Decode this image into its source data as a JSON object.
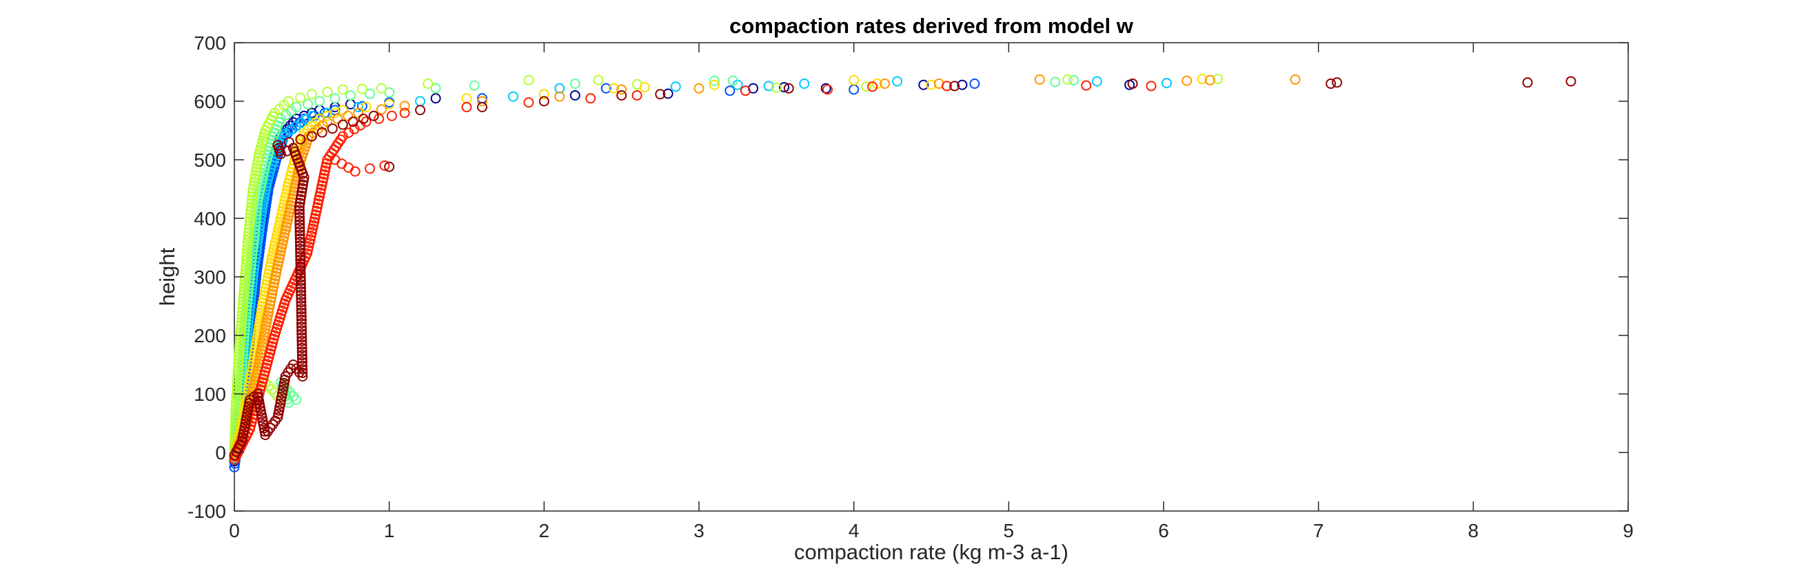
{
  "chart_data": {
    "type": "scatter",
    "title": "compaction rates derived from model w",
    "xlabel": "compaction rate (kg m-3 a-1)",
    "ylabel": "height",
    "xlim": [
      0,
      9
    ],
    "ylim": [
      -100,
      700
    ],
    "xticks": [
      "0",
      "1",
      "2",
      "3",
      "4",
      "5",
      "6",
      "7",
      "8",
      "9"
    ],
    "yticks": [
      "-100",
      "0",
      "100",
      "200",
      "300",
      "400",
      "500",
      "600",
      "700"
    ],
    "grid": false,
    "legend": "none",
    "marker": "open-circle",
    "colormap": [
      "#00007f",
      "#0000ff",
      "#007fff",
      "#00ffff",
      "#7fff7f",
      "#ffff00",
      "#ff7f00",
      "#ff0000",
      "#7f0000"
    ],
    "series": [
      {
        "color": "#00008f",
        "points": [
          [
            0.0,
            -15
          ],
          [
            0.02,
            20
          ],
          [
            0.05,
            80
          ],
          [
            0.08,
            150
          ],
          [
            0.12,
            250
          ],
          [
            0.16,
            350
          ],
          [
            0.2,
            430
          ],
          [
            0.25,
            500
          ],
          [
            0.3,
            540
          ],
          [
            0.4,
            570
          ],
          [
            0.55,
            585
          ],
          [
            0.75,
            595
          ],
          [
            1.3,
            605
          ],
          [
            2.2,
            610
          ],
          [
            2.8,
            613
          ],
          [
            3.35,
            622
          ],
          [
            3.55,
            624
          ],
          [
            3.82,
            622
          ],
          [
            4.45,
            628
          ],
          [
            4.7,
            628
          ],
          [
            5.78,
            628
          ]
        ]
      },
      {
        "color": "#0050ff",
        "points": [
          [
            0.0,
            -25
          ],
          [
            0.03,
            30
          ],
          [
            0.06,
            100
          ],
          [
            0.1,
            200
          ],
          [
            0.14,
            300
          ],
          [
            0.18,
            380
          ],
          [
            0.22,
            450
          ],
          [
            0.27,
            500
          ],
          [
            0.32,
            540
          ],
          [
            0.45,
            570
          ],
          [
            0.65,
            585
          ],
          [
            1.0,
            598
          ],
          [
            1.6,
            605
          ],
          [
            2.4,
            622
          ],
          [
            3.2,
            618
          ],
          [
            4.0,
            620
          ],
          [
            4.78,
            630
          ]
        ]
      },
      {
        "color": "#00c8ff",
        "points": [
          [
            0.0,
            -10
          ],
          [
            0.02,
            40
          ],
          [
            0.05,
            120
          ],
          [
            0.09,
            220
          ],
          [
            0.13,
            320
          ],
          [
            0.17,
            400
          ],
          [
            0.21,
            460
          ],
          [
            0.26,
            510
          ],
          [
            0.33,
            545
          ],
          [
            0.5,
            575
          ],
          [
            0.8,
            590
          ],
          [
            1.2,
            600
          ],
          [
            1.8,
            608
          ],
          [
            2.1,
            622
          ],
          [
            2.85,
            625
          ],
          [
            3.25,
            628
          ],
          [
            3.45,
            626
          ],
          [
            3.68,
            630
          ],
          [
            4.28,
            634
          ],
          [
            5.57,
            634
          ],
          [
            6.02,
            631
          ]
        ]
      },
      {
        "color": "#64ff96",
        "points": [
          [
            0.0,
            0
          ],
          [
            0.02,
            60
          ],
          [
            0.05,
            150
          ],
          [
            0.08,
            250
          ],
          [
            0.12,
            350
          ],
          [
            0.15,
            430
          ],
          [
            0.2,
            490
          ],
          [
            0.25,
            540
          ],
          [
            0.3,
            570
          ],
          [
            0.4,
            590
          ],
          [
            0.55,
            600
          ],
          [
            0.75,
            610
          ],
          [
            1.0,
            615
          ],
          [
            1.3,
            622
          ],
          [
            1.55,
            627
          ],
          [
            2.2,
            630
          ],
          [
            3.1,
            635
          ],
          [
            3.22,
            635
          ],
          [
            5.3,
            633
          ],
          [
            5.42,
            636
          ],
          [
            0.4,
            90
          ],
          [
            0.3,
            120
          ],
          [
            0.35,
            85
          ]
        ]
      },
      {
        "color": "#b4ff32",
        "points": [
          [
            0.0,
            10
          ],
          [
            0.01,
            80
          ],
          [
            0.03,
            170
          ],
          [
            0.06,
            270
          ],
          [
            0.09,
            370
          ],
          [
            0.12,
            450
          ],
          [
            0.16,
            510
          ],
          [
            0.2,
            550
          ],
          [
            0.26,
            580
          ],
          [
            0.35,
            600
          ],
          [
            0.5,
            612
          ],
          [
            0.7,
            620
          ],
          [
            0.95,
            622
          ],
          [
            1.25,
            630
          ],
          [
            1.9,
            636
          ],
          [
            2.35,
            636
          ],
          [
            2.6,
            629
          ],
          [
            3.5,
            623
          ],
          [
            4.08,
            625
          ],
          [
            5.38,
            637
          ],
          [
            6.35,
            638
          ],
          [
            0.2,
            120
          ],
          [
            0.3,
            90
          ]
        ]
      },
      {
        "color": "#ffdc00",
        "points": [
          [
            0.0,
            -5
          ],
          [
            0.06,
            60
          ],
          [
            0.12,
            150
          ],
          [
            0.18,
            250
          ],
          [
            0.24,
            330
          ],
          [
            0.3,
            400
          ],
          [
            0.35,
            460
          ],
          [
            0.4,
            510
          ],
          [
            0.45,
            545
          ],
          [
            0.55,
            570
          ],
          [
            0.7,
            585
          ],
          [
            1.0,
            595
          ],
          [
            1.5,
            605
          ],
          [
            2.0,
            612
          ],
          [
            2.45,
            622
          ],
          [
            2.65,
            624
          ],
          [
            3.1,
            628
          ],
          [
            4.0,
            636
          ],
          [
            4.15,
            630
          ],
          [
            4.5,
            628
          ],
          [
            6.25,
            638
          ]
        ]
      },
      {
        "color": "#ff9600",
        "points": [
          [
            0.0,
            -8
          ],
          [
            0.08,
            50
          ],
          [
            0.15,
            140
          ],
          [
            0.22,
            240
          ],
          [
            0.28,
            320
          ],
          [
            0.33,
            380
          ],
          [
            0.38,
            440
          ],
          [
            0.43,
            500
          ],
          [
            0.48,
            540
          ],
          [
            0.6,
            565
          ],
          [
            0.8,
            580
          ],
          [
            1.1,
            592
          ],
          [
            1.6,
            600
          ],
          [
            2.1,
            608
          ],
          [
            2.5,
            620
          ],
          [
            3.0,
            622
          ],
          [
            4.2,
            630
          ],
          [
            4.55,
            630
          ],
          [
            5.2,
            637
          ],
          [
            6.15,
            635
          ],
          [
            6.3,
            636
          ],
          [
            6.85,
            637
          ]
        ]
      },
      {
        "color": "#ff1e00",
        "points": [
          [
            0.0,
            -12
          ],
          [
            0.1,
            40
          ],
          [
            0.18,
            120
          ],
          [
            0.26,
            200
          ],
          [
            0.33,
            260
          ],
          [
            0.4,
            300
          ],
          [
            0.47,
            340
          ],
          [
            0.52,
            400
          ],
          [
            0.56,
            450
          ],
          [
            0.6,
            500
          ],
          [
            0.7,
            540
          ],
          [
            0.85,
            565
          ],
          [
            1.1,
            580
          ],
          [
            1.5,
            590
          ],
          [
            1.9,
            598
          ],
          [
            2.3,
            605
          ],
          [
            2.6,
            610
          ],
          [
            3.3,
            618
          ],
          [
            3.83,
            620
          ],
          [
            4.12,
            625
          ],
          [
            4.6,
            626
          ],
          [
            5.5,
            627
          ],
          [
            5.92,
            626
          ],
          [
            0.65,
            500
          ],
          [
            0.78,
            480
          ],
          [
            0.97,
            490
          ]
        ]
      },
      {
        "color": "#900000",
        "points": [
          [
            0.0,
            -5
          ],
          [
            0.05,
            20
          ],
          [
            0.1,
            90
          ],
          [
            0.15,
            100
          ],
          [
            0.2,
            30
          ],
          [
            0.28,
            60
          ],
          [
            0.33,
            130
          ],
          [
            0.38,
            150
          ],
          [
            0.44,
            130
          ],
          [
            0.42,
            420
          ],
          [
            0.45,
            470
          ],
          [
            0.38,
            520
          ],
          [
            0.3,
            510
          ],
          [
            0.28,
            525
          ],
          [
            0.5,
            540
          ],
          [
            0.7,
            560
          ],
          [
            0.9,
            575
          ],
          [
            1.2,
            585
          ],
          [
            1.6,
            590
          ],
          [
            2.0,
            600
          ],
          [
            2.5,
            610
          ],
          [
            2.75,
            612
          ],
          [
            3.58,
            622
          ],
          [
            4.65,
            626
          ],
          [
            5.8,
            630
          ],
          [
            7.08,
            630
          ],
          [
            7.12,
            632
          ],
          [
            8.35,
            632
          ],
          [
            8.63,
            634
          ],
          [
            1.0,
            488
          ]
        ]
      }
    ]
  }
}
